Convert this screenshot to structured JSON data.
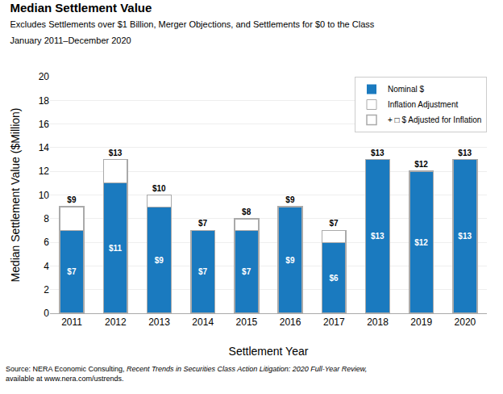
{
  "chart_data": {
    "type": "bar",
    "title": "Median Settlement Value",
    "subtitle": [
      "Excludes Settlements over $1 Billion, Merger Objections, and Settlements for $0 to the Class",
      "January 2011–December 2020"
    ],
    "annotations": [
      "Source: NERA Economic Consulting, ",
      "Recent Trends in Securities Class Action Litigation: 2020 Full-Year Review,",
      " available at www.nera.com/ustrends."
    ],
    "xlabel": "Settlement Year",
    "ylabel": "Median Settlement Value ($Million)",
    "categories": [
      "2011",
      "2012",
      "2013",
      "2014",
      "2015",
      "2016",
      "2017",
      "2018",
      "2019",
      "2020"
    ],
    "series": [
      {
        "name": "Nominal $",
        "color": "#1a7abf",
        "values": [
          7,
          11,
          9,
          7,
          7,
          9,
          6,
          13,
          12,
          13
        ],
        "value_labels": [
          "$7",
          "$11",
          "$9",
          "$7",
          "$7",
          "$9",
          "$6",
          "$13",
          "$12",
          "$13"
        ]
      },
      {
        "name": "Inflation Adjustment",
        "color": "#aaaaaa",
        "values": [
          2,
          2,
          1,
          0,
          1,
          0,
          1,
          0,
          0,
          0
        ]
      },
      {
        "name": "+ □ $ Adjusted for Inflation",
        "type": "outline",
        "color": "#aaaaaa",
        "values": [
          9,
          13,
          10,
          7,
          8,
          9,
          7,
          13,
          12,
          13
        ],
        "value_labels": [
          "$9",
          "$13",
          "$10",
          "$7",
          "$8",
          "$9",
          "$7",
          "$13",
          "$12",
          "$13"
        ]
      }
    ],
    "stacked": true,
    "data_labels": true,
    "ylim": [
      0,
      20
    ],
    "yticks": [
      0,
      2,
      4,
      6,
      8,
      10,
      12,
      14,
      16,
      18,
      20
    ],
    "grid": true,
    "legend": "upper right"
  }
}
